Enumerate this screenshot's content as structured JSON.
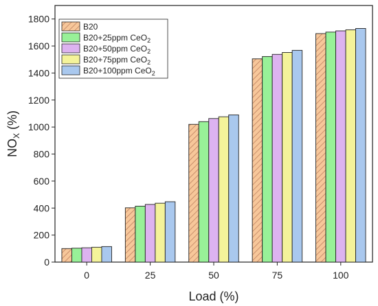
{
  "chart_data": {
    "type": "bar",
    "title": "",
    "xlabel": "Load (%)",
    "ylabel_main": "NO",
    "ylabel_sub": "X",
    "ylabel_unit": " (%)",
    "categories": [
      "0",
      "25",
      "50",
      "75",
      "100"
    ],
    "ylim": [
      0,
      1900
    ],
    "yticks": [
      0,
      200,
      400,
      600,
      800,
      1000,
      1200,
      1400,
      1600,
      1800
    ],
    "grid": false,
    "legend_position": "top-left",
    "series": [
      {
        "name": "B20",
        "name_sub": "",
        "values": [
          100,
          402,
          1020,
          1505,
          1692
        ],
        "color": "#f7c79a",
        "pattern": "hatch"
      },
      {
        "name": "B20+25ppm CeO",
        "name_sub": "2",
        "values": [
          103,
          414,
          1040,
          1522,
          1703
        ],
        "color": "#98f198",
        "pattern": "none"
      },
      {
        "name": "B20+50ppm CeO",
        "name_sub": "2",
        "values": [
          106,
          427,
          1063,
          1538,
          1712
        ],
        "color": "#ddb3f0",
        "pattern": "none"
      },
      {
        "name": "B20+75ppm CeO",
        "name_sub": "2",
        "values": [
          110,
          436,
          1076,
          1552,
          1720
        ],
        "color": "#f4f39a",
        "pattern": "none"
      },
      {
        "name": "B20+100ppm CeO",
        "name_sub": "2",
        "values": [
          115,
          447,
          1090,
          1568,
          1730
        ],
        "color": "#a9c8ee",
        "pattern": "none"
      }
    ]
  }
}
